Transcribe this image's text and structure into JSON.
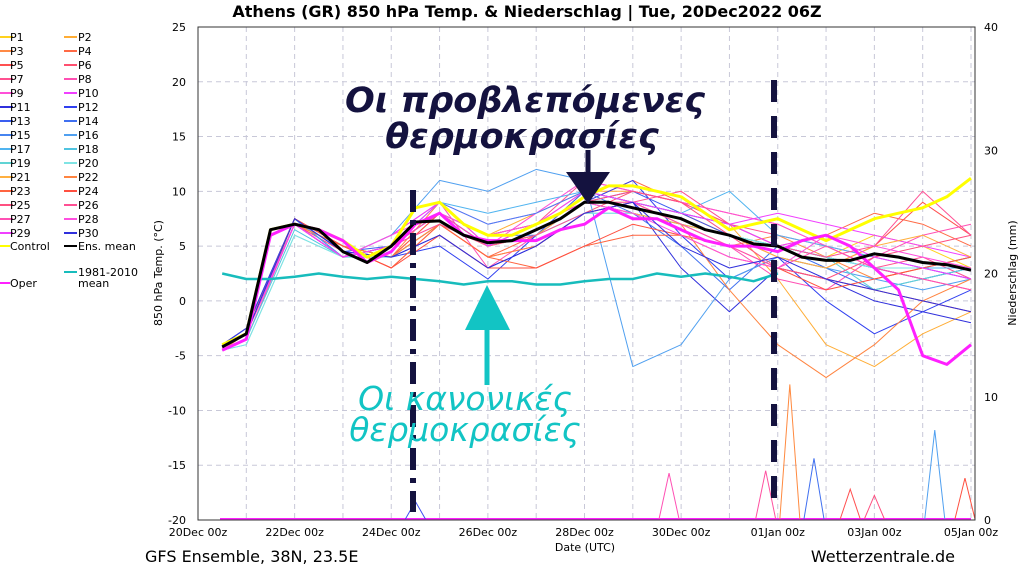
{
  "chart_data": {
    "type": "line",
    "title": "Athens  (GR)  850 hPa Temp. & Niederschlag | Tue, 20Dec2022 06Z",
    "xlabel": "Date (UTC)",
    "ylabel": "850 hPa Temp. (°C)",
    "y2label": "Niederschlag (mm)",
    "ylim": [
      -20,
      25
    ],
    "y2lim": [
      0,
      40
    ],
    "xlim": [
      "2022-12-20T00:00Z",
      "2023-01-05T00:00Z"
    ],
    "yticks": [
      -20,
      -15,
      -10,
      -5,
      0,
      5,
      10,
      15,
      20,
      25
    ],
    "y2ticks": [
      0,
      10,
      20,
      30,
      40
    ],
    "xticks": [
      {
        "t": "2022-12-20T00:00Z",
        "label": "20Dec 00z"
      },
      {
        "t": "2022-12-22T00:00Z",
        "label": "22Dec 00z"
      },
      {
        "t": "2022-12-24T00:00Z",
        "label": "24Dec 00z"
      },
      {
        "t": "2022-12-26T00:00Z",
        "label": "26Dec 00z"
      },
      {
        "t": "2022-12-28T00:00Z",
        "label": "28Dec 00z"
      },
      {
        "t": "2022-12-30T00:00Z",
        "label": "30Dec 00z"
      },
      {
        "t": "2023-01-01T00:00Z",
        "label": "01Jan 00z"
      },
      {
        "t": "2023-01-03T00:00Z",
        "label": "03Jan 00z"
      },
      {
        "t": "2023-01-05T00:00Z",
        "label": "05Jan 00z"
      }
    ],
    "grid": true,
    "legend_placement": "left-outside",
    "times_12h": [
      "2022-12-20T12:00Z",
      "2022-12-21T00:00Z",
      "2022-12-21T12:00Z",
      "2022-12-22T00:00Z",
      "2022-12-22T12:00Z",
      "2022-12-23T00:00Z",
      "2022-12-23T12:00Z",
      "2022-12-24T00:00Z",
      "2022-12-24T12:00Z",
      "2022-12-25T00:00Z",
      "2022-12-25T12:00Z",
      "2022-12-26T00:00Z",
      "2022-12-26T12:00Z",
      "2022-12-27T00:00Z",
      "2022-12-27T12:00Z",
      "2022-12-28T00:00Z",
      "2022-12-28T12:00Z",
      "2022-12-29T00:00Z",
      "2022-12-29T12:00Z",
      "2022-12-30T00:00Z",
      "2022-12-30T12:00Z",
      "2022-12-31T00:00Z",
      "2022-12-31T12:00Z",
      "2023-01-01T00:00Z",
      "2023-01-01T12:00Z",
      "2023-01-02T00:00Z",
      "2023-01-02T12:00Z",
      "2023-01-03T00:00Z",
      "2023-01-03T12:00Z",
      "2023-01-04T00:00Z",
      "2023-01-04T12:00Z",
      "2023-01-05T00:00Z"
    ],
    "times_daily": [
      "2022-12-20T12:00Z",
      "2022-12-21T00:00Z",
      "2022-12-22T00:00Z",
      "2022-12-23T00:00Z",
      "2022-12-24T00:00Z",
      "2022-12-25T00:00Z",
      "2022-12-26T00:00Z",
      "2022-12-27T00:00Z",
      "2022-12-28T00:00Z",
      "2022-12-29T00:00Z",
      "2022-12-30T00:00Z",
      "2022-12-31T00:00Z",
      "2023-01-01T00:00Z",
      "2023-01-02T00:00Z",
      "2023-01-03T00:00Z",
      "2023-01-04T00:00Z",
      "2023-01-05T00:00Z"
    ],
    "members": [
      {
        "name": "P1",
        "color": "#ffd21e",
        "values": [
          -4,
          -3,
          7,
          4,
          5,
          8,
          6,
          7,
          9,
          9,
          8,
          6,
          5,
          4,
          6,
          5,
          3
        ]
      },
      {
        "name": "P2",
        "color": "#ffad35",
        "values": [
          -4,
          -2.5,
          7,
          5,
          4,
          8,
          6,
          8,
          10,
          10,
          9,
          7,
          2,
          -4,
          -6,
          -3,
          -1
        ]
      },
      {
        "name": "P3",
        "color": "#ff8a45",
        "values": [
          -4.5,
          -3,
          7.5,
          5,
          4,
          9,
          5,
          7,
          10,
          9,
          7,
          5,
          6,
          4,
          2,
          3,
          4
        ]
      },
      {
        "name": "P4",
        "color": "#ff6a45",
        "values": [
          -4,
          -2.5,
          7.5,
          5,
          3,
          7,
          4,
          6,
          9,
          11,
          9,
          7,
          5,
          6,
          8,
          7,
          5
        ]
      },
      {
        "name": "P5",
        "color": "#ff5050",
        "values": [
          -4,
          -3,
          7,
          5,
          4,
          8,
          5,
          6,
          10,
          9,
          8,
          6,
          4,
          3,
          5,
          9,
          6
        ]
      },
      {
        "name": "P6",
        "color": "#ff5070",
        "values": [
          -4.3,
          -3,
          7,
          4.5,
          4,
          7,
          4,
          5,
          8,
          10,
          9,
          8,
          7,
          5,
          3,
          2,
          1
        ]
      },
      {
        "name": "P7",
        "color": "#ff5090",
        "values": [
          -4,
          -3,
          7,
          4,
          5,
          8,
          6,
          7,
          11,
          10,
          9,
          7,
          6,
          5,
          3,
          4,
          2
        ]
      },
      {
        "name": "P8",
        "color": "#ff50b4",
        "values": [
          -4.5,
          -3.5,
          7,
          4,
          6,
          9,
          3,
          6,
          9,
          8,
          7,
          5,
          2,
          1,
          4,
          6,
          7
        ]
      },
      {
        "name": "P9",
        "color": "#ff50d8",
        "values": [
          -4,
          -3,
          7,
          4,
          5,
          7,
          5,
          8,
          11,
          10,
          9,
          8,
          7,
          5,
          4,
          3,
          2
        ]
      },
      {
        "name": "P10",
        "color": "#f040ff",
        "values": [
          -4,
          -3,
          7,
          4,
          6,
          9,
          7,
          8,
          10,
          9,
          8,
          7,
          8,
          7,
          6,
          5,
          4
        ]
      },
      {
        "name": "P11",
        "color": "#3030dc",
        "values": [
          -4,
          -2.5,
          7.5,
          4.5,
          4,
          6,
          3,
          5,
          8,
          9,
          3,
          -1,
          3,
          2,
          0,
          -1,
          -2
        ]
      },
      {
        "name": "P12",
        "color": "#3040f0",
        "values": [
          -4,
          -2.5,
          7.5,
          5,
          4,
          5,
          2,
          6,
          9,
          11,
          6,
          2,
          4,
          0,
          -3,
          -1,
          1
        ]
      },
      {
        "name": "P13",
        "color": "#3a5ef0",
        "values": [
          -4.2,
          -3,
          7.5,
          4.5,
          5,
          8,
          5,
          7,
          9,
          10,
          8,
          6,
          5,
          4,
          3,
          2,
          3
        ]
      },
      {
        "name": "P14",
        "color": "#4070f0",
        "values": [
          -4,
          -3,
          7.5,
          4,
          5,
          8,
          6,
          6,
          10,
          8,
          5,
          1,
          5,
          3,
          1,
          2,
          3
        ]
      },
      {
        "name": "P15",
        "color": "#4684f0",
        "values": [
          -4,
          -3,
          7.5,
          4,
          5,
          9,
          7,
          8,
          10,
          9,
          8,
          7,
          5,
          4,
          3,
          3,
          2
        ]
      },
      {
        "name": "P16",
        "color": "#50a0f0",
        "values": [
          -4,
          -3,
          7.5,
          4,
          6,
          11,
          10,
          12,
          11,
          -6,
          -4,
          2,
          4,
          3,
          2,
          1,
          2
        ]
      },
      {
        "name": "P17",
        "color": "#50b4f0",
        "values": [
          -4,
          -3,
          7,
          4,
          5,
          9,
          8,
          9,
          10,
          9,
          8,
          10,
          6,
          5,
          4,
          3,
          3
        ]
      },
      {
        "name": "P18",
        "color": "#50c4e0",
        "values": [
          -4.5,
          -3.5,
          6.5,
          4,
          5,
          8,
          6,
          7,
          9,
          8,
          7,
          6,
          5,
          4,
          3,
          3,
          4
        ]
      },
      {
        "name": "P19",
        "color": "#60d4d4",
        "values": [
          -4.5,
          -4,
          6,
          4,
          4,
          7,
          5,
          6,
          8,
          8,
          7,
          6,
          5,
          4,
          1,
          2,
          3
        ]
      },
      {
        "name": "P20",
        "color": "#80e4e4",
        "values": [
          -4.5,
          -4,
          6,
          4,
          4,
          7,
          5,
          6,
          8,
          8,
          7,
          6,
          5,
          4,
          3,
          3,
          4
        ]
      },
      {
        "name": "P21",
        "color": "#ffb040",
        "values": [
          -4,
          -3,
          7,
          5,
          4,
          7,
          5,
          6,
          9,
          8,
          7,
          6,
          4,
          3,
          5,
          6,
          4
        ]
      },
      {
        "name": "P22",
        "color": "#ff8440",
        "values": [
          -4,
          -3,
          7,
          5,
          4,
          7,
          4,
          5,
          8,
          9,
          7,
          1,
          -4,
          -7,
          -4,
          0,
          2
        ]
      },
      {
        "name": "P23",
        "color": "#ff6440",
        "values": [
          -4,
          -3,
          7.5,
          5,
          3,
          7,
          4,
          3,
          5,
          6,
          6,
          5,
          3,
          2,
          1,
          0,
          -1
        ]
      },
      {
        "name": "P24",
        "color": "#ff5040",
        "values": [
          -4,
          -3,
          7.5,
          5,
          3,
          6,
          3,
          3,
          5,
          7,
          6,
          4,
          3,
          1,
          2,
          3,
          4
        ]
      },
      {
        "name": "P25",
        "color": "#ff5080",
        "values": [
          -4,
          -3,
          7,
          4,
          5,
          8,
          6,
          7,
          9,
          10,
          9,
          6,
          3,
          2,
          4,
          5,
          6
        ]
      },
      {
        "name": "P26",
        "color": "#ff5094",
        "values": [
          -4.3,
          -3,
          7,
          4,
          5,
          7,
          5,
          6,
          8,
          9,
          10,
          7,
          5,
          4,
          5,
          10,
          6
        ]
      },
      {
        "name": "P27",
        "color": "#ff50b4",
        "values": [
          -4,
          -3,
          7,
          4,
          5,
          8,
          5,
          7,
          9,
          9,
          7,
          5,
          3,
          5,
          3,
          2,
          1
        ]
      },
      {
        "name": "P28",
        "color": "#ff50e0",
        "values": [
          -4,
          -3,
          7,
          4,
          6,
          8,
          6,
          7,
          9,
          8,
          6,
          4,
          3,
          6,
          5,
          4,
          3
        ]
      },
      {
        "name": "P29",
        "color": "#f040ff",
        "values": [
          -4,
          -3,
          7,
          4,
          5,
          9,
          5,
          7,
          10,
          9,
          8,
          7,
          5,
          6,
          4,
          3,
          2
        ]
      },
      {
        "name": "P30",
        "color": "#3030dc",
        "values": [
          -4,
          -3,
          7.5,
          4.5,
          4,
          6,
          3,
          5,
          8,
          9,
          5,
          3,
          4,
          2,
          1,
          0,
          -1
        ]
      }
    ],
    "control": {
      "name": "Control",
      "color": "#ffff00",
      "values": [
        -4,
        -3,
        6.5,
        7,
        6.5,
        5.5,
        4,
        5,
        8.5,
        9,
        7,
        6,
        6,
        7,
        8,
        9.5,
        10.5,
        10.5,
        10,
        9.5,
        8,
        6.5,
        7,
        7.5,
        6.5,
        5.5,
        6.5,
        7.5,
        8,
        8.5,
        9.5,
        11.2
      ]
    },
    "ens_mean": {
      "name": "Ens. mean",
      "color": "#000000",
      "values": [
        -4.2,
        -3,
        6.5,
        7,
        6.5,
        4.5,
        3.5,
        5,
        7.2,
        7.3,
        6,
        5.3,
        5.5,
        6.5,
        7.5,
        9,
        9,
        8.5,
        8,
        7.5,
        6.5,
        6,
        5.2,
        5,
        4,
        3.7,
        3.7,
        4.3,
        4,
        3.5,
        3.3,
        2.8
      ]
    },
    "oper": {
      "name": "Oper",
      "color": "#ff20ff",
      "values": [
        -4.5,
        -3.5,
        6,
        7,
        6.5,
        5.5,
        3.5,
        4.5,
        7,
        8,
        6,
        5.5,
        5.5,
        5.5,
        6.5,
        7,
        8.5,
        7.5,
        7.5,
        6.5,
        5.5,
        5,
        5,
        4.5,
        5.5,
        6,
        5,
        3,
        1,
        -5,
        -5.8,
        -4
      ]
    },
    "climate_mean": {
      "name": "1981-2010 mean",
      "color": "#17bcbc",
      "values": [
        2.5,
        2,
        2,
        2.2,
        2.5,
        2.2,
        2,
        2.2,
        2,
        1.8,
        1.5,
        1.8,
        1.8,
        1.5,
        1.5,
        1.8,
        2,
        2,
        2.5,
        2.2,
        2.5,
        2.2,
        1.8,
        2.5
      ]
    },
    "precip": [
      {
        "member": "P11",
        "color": "#4050f0",
        "t": "2022-12-24T12:00Z",
        "mm": 1.5
      },
      {
        "member": "P8",
        "color": "#ff50b4",
        "t": "2022-12-29T18:00Z",
        "mm": 3.8
      },
      {
        "member": "P25",
        "color": "#ff50a0",
        "t": "2022-12-31T18:00Z",
        "mm": 4
      },
      {
        "member": "P22",
        "color": "#ff8a40",
        "t": "2023-01-01T06:00Z",
        "mm": 11
      },
      {
        "member": "P14",
        "color": "#4070f0",
        "t": "2023-01-01T18:00Z",
        "mm": 5
      },
      {
        "member": "P5",
        "color": "#ff5050",
        "t": "2023-01-02T12:00Z",
        "mm": 2.5
      },
      {
        "member": "P6",
        "color": "#ff5080",
        "t": "2023-01-03T00:00Z",
        "mm": 2
      },
      {
        "member": "P16",
        "color": "#50a0f0",
        "t": "2023-01-04T06:00Z",
        "mm": 7.3
      },
      {
        "member": "P24",
        "color": "#ff5040",
        "t": "2023-01-04T21:00Z",
        "mm": 3.4
      }
    ],
    "annotations": {
      "forecast_line1": "Οι προβλεπόμενες",
      "forecast_line2": "θερμοκρασίες",
      "normal_line1": "Οι κανονικές",
      "normal_line2": "θερμοκρασίες",
      "forecast_color": "#14123f",
      "normal_color": "#12c4c4"
    }
  },
  "legend": {
    "control": "Control",
    "ens_mean": "Ens. mean",
    "climate_line1": "1981-2010",
    "climate_line2": "mean",
    "oper": "Oper"
  },
  "footer": {
    "left": "GFS Ensemble, 38N, 23.5E",
    "right": "Wetterzentrale.de"
  }
}
